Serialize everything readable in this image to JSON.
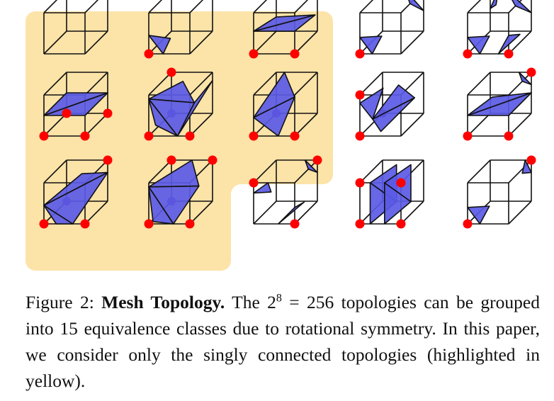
{
  "colors": {
    "highlight": "#fce3a8",
    "triangle_fill": "#5a5ae6",
    "vertex_active": "#ff0000",
    "vertex_hidden": "#6a1a9a",
    "edge": "#111111"
  },
  "caption": {
    "label": "Figure 2:",
    "title": "Mesh Topology.",
    "text_1": "The 2",
    "exponent": "8",
    "text_2": " = 256 topologies can be grouped into 15 equivalence classes due to rotational symmetry. In this paper, we consider only the singly connected topologies (highlighted in yellow)."
  },
  "grid": {
    "rows": 3,
    "cols": 5,
    "singly_connected_count": 8
  }
}
